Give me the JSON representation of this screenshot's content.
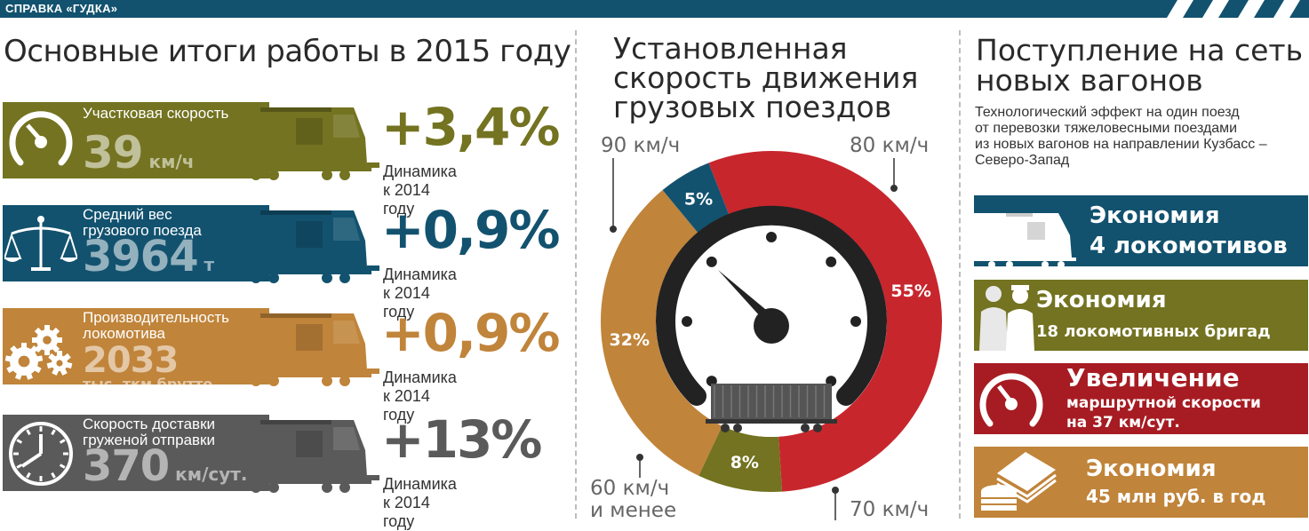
{
  "header": {
    "tag": "СПРАВКА «ГУДКА»"
  },
  "left": {
    "title": "Основные итоги работы в 2015 году",
    "rows": [
      {
        "label": "Участковая скорость",
        "value": "39",
        "unit": "км/ч",
        "change": "+3,4%",
        "dynamics": "Динамика к 2014 году",
        "color": "#737321",
        "icon": "speedometer-icon"
      },
      {
        "label": "Средний вес\nгрузового поезда",
        "value": "3964",
        "unit": "т",
        "change": "+0,9%",
        "dynamics": "Динамика к 2014 году",
        "color": "#12526f",
        "icon": "scales-icon"
      },
      {
        "label": "Производительность\nлокомотива",
        "value": "2033",
        "unit": "тыс. ткм брутто",
        "change": "+0,9%",
        "dynamics": "Динамика к 2014 году",
        "color": "#c0843a",
        "icon": "gears-icon"
      },
      {
        "label": "Скорость доставки\nгруженой отправки",
        "value": "370",
        "unit": "км/сут.",
        "change": "+13%",
        "dynamics": "Динамика к 2014 году",
        "color": "#5a5a5a",
        "icon": "clock-icon"
      }
    ]
  },
  "middle": {
    "title": "Установленная\nскорость движения\nгрузовых поездов",
    "callouts": {
      "kmh90": "90 км/ч",
      "kmh80": "80 км/ч",
      "kmh60": "60 км/ч\nи менее",
      "kmh70": "70 км/ч"
    }
  },
  "chart_data": {
    "type": "pie",
    "title": "Установленная скорость движения грузовых поездов",
    "slices": [
      {
        "name": "80 км/ч",
        "value": 55,
        "label": "55%",
        "color": "#c8262d"
      },
      {
        "name": "70 км/ч",
        "value": 8,
        "label": "8%",
        "color": "#737321"
      },
      {
        "name": "60 км/ч и менее",
        "value": 32,
        "label": "32%",
        "color": "#c0843a"
      },
      {
        "name": "90 км/ч",
        "value": 5,
        "label": "5%",
        "color": "#12526f"
      }
    ]
  },
  "right": {
    "title": "Поступление на сеть\nновых вагонов",
    "subtitle": "Технологический эффект на один поезд\nот перевозки тяжеловесными поездами\nиз новых вагонов на направлении Кузбасс –\nСеверо-Запад",
    "boxes": [
      {
        "line1": "Экономия",
        "line2": "4 локомотивов",
        "color": "#12526f",
        "icon": "locomotive-icon"
      },
      {
        "line1": "Экономия",
        "line2": "18 локомотивных бригад",
        "color": "#737321",
        "icon": "crew-icon"
      },
      {
        "line1": "Увеличение",
        "line2": "маршрутной скорости\nна 37 км/сут.",
        "color": "#a61c22",
        "icon": "speedometer-icon"
      },
      {
        "line1": "Экономия",
        "line2": "45 млн руб. в год",
        "color": "#c0843a",
        "icon": "money-icon"
      }
    ]
  }
}
